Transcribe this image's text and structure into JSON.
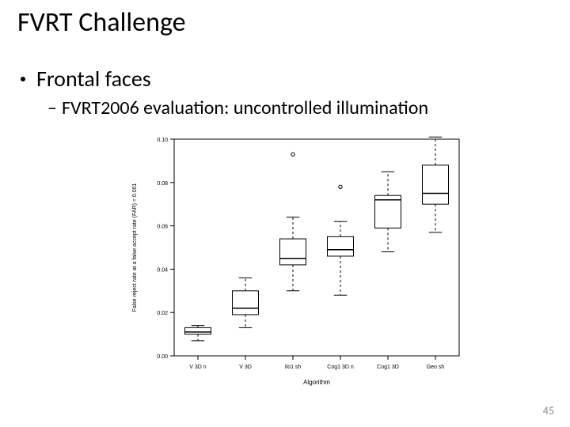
{
  "title": "FVRT Challenge",
  "bullet_l1": "Frontal faces",
  "bullet_l2": "FVRT2006 evaluation: uncontrolled illumination",
  "page_number": "45",
  "chart": {
    "type": "boxplot",
    "background_color": "#ffffff",
    "axis_color": "#000000",
    "box_stroke": "#000000",
    "whisker_dash": "3,3",
    "outlier_marker": "circle",
    "outlier_stroke": "#000000",
    "xlabel": "Algorithm",
    "xlabel_fontsize": 8,
    "ylabel": "False reject rate at a false accept rate (FAR) = 0.001",
    "ylabel_fontsize": 7,
    "tick_fontsize": 7,
    "xtick_fontsize": 7,
    "categories": [
      "V 3D n",
      "V 3D",
      "Ilo1 sh",
      "Cog1 3D n",
      "Cog1 3D",
      "Geo sh"
    ],
    "ylim": [
      0.0,
      0.1
    ],
    "yticks": [
      0.0,
      0.02,
      0.04,
      0.06,
      0.08,
      0.1
    ],
    "ytick_labels": [
      "0.00",
      "0.02",
      "0.04",
      "0.06",
      "0.08",
      "0.10"
    ],
    "box_width": 0.55,
    "boxes": [
      {
        "low": 0.007,
        "q1": 0.01,
        "median": 0.011,
        "q3": 0.013,
        "high": 0.014,
        "outliers": []
      },
      {
        "low": 0.013,
        "q1": 0.019,
        "median": 0.022,
        "q3": 0.03,
        "high": 0.036,
        "outliers": []
      },
      {
        "low": 0.03,
        "q1": 0.042,
        "median": 0.045,
        "q3": 0.054,
        "high": 0.064,
        "outliers": [
          0.093
        ]
      },
      {
        "low": 0.028,
        "q1": 0.046,
        "median": 0.049,
        "q3": 0.055,
        "high": 0.062,
        "outliers": [
          0.078
        ]
      },
      {
        "low": 0.048,
        "q1": 0.059,
        "median": 0.072,
        "q3": 0.074,
        "high": 0.085,
        "outliers": []
      },
      {
        "low": 0.057,
        "q1": 0.07,
        "median": 0.075,
        "q3": 0.088,
        "high": 0.101,
        "outliers": []
      }
    ]
  }
}
